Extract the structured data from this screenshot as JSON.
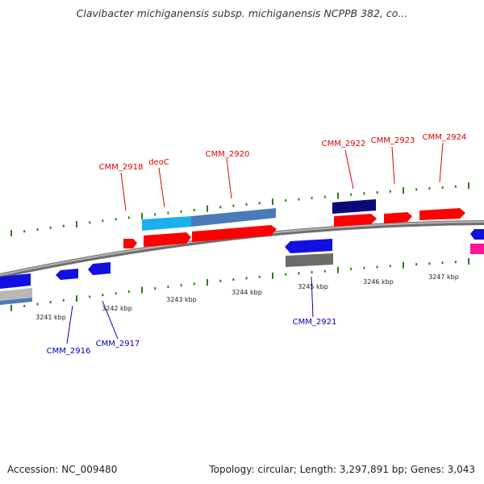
{
  "header": {
    "title": "Clavibacter michiganensis subsp. michiganensis NCPPB 382, co..."
  },
  "footer": {
    "accession": "Accession: NC_009480",
    "topology": "Topology: circular; Length: 3,297,891 bp; Genes: 3,043"
  },
  "scale_ticks": [
    "3241 kbp",
    "3242 kbp",
    "3243 kbp",
    "3244 kbp",
    "3245 kbp",
    "3246 kbp",
    "3247 kbp"
  ],
  "gene_labels_above": [
    "CMM_2918",
    "deoC",
    "CMM_2920",
    "CMM_2922",
    "CMM_2923",
    "CMM_2924"
  ],
  "gene_labels_below": [
    "CMM_2916",
    "CMM_2917",
    "CMM_2921"
  ],
  "colors": {
    "label_above": "#dd0000",
    "label_below": "#0000bb",
    "tick_mark": "#2f7d1f",
    "gene_red": "#ff0000",
    "gene_blue": "#1010e0",
    "gene_navy": "#0a0a78",
    "gene_lightblue": "#1ab0ee",
    "gene_steelblue": "#4a7ab8",
    "gene_gray": "#6b6b6b",
    "gene_magenta": "#ff1493",
    "backbone": "#808080"
  }
}
